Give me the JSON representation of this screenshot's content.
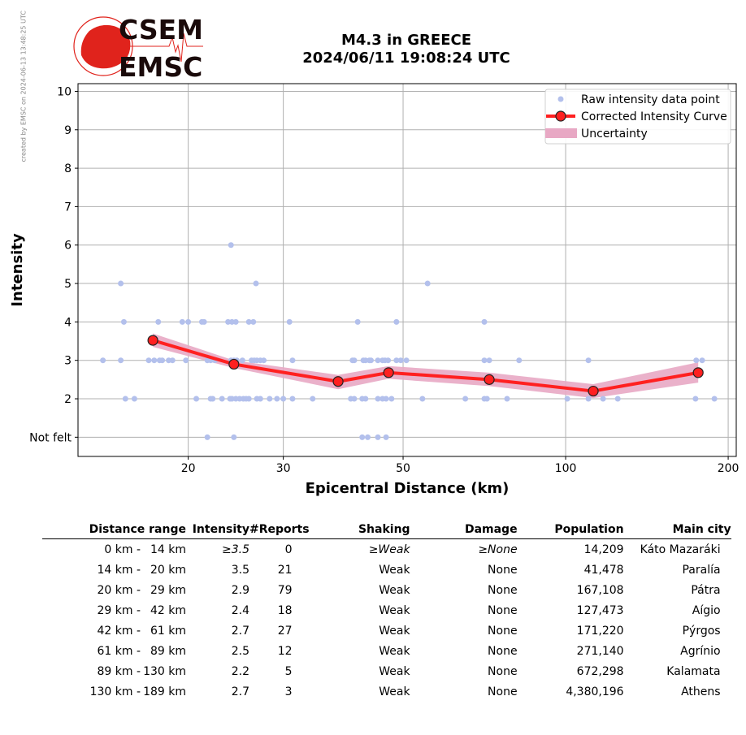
{
  "watermark": "created by EMSC on 2024-06-13 13:48:25 UTC",
  "logo": {
    "top": "CSEM",
    "bottom": "EMSC"
  },
  "title": {
    "line1": "M4.3 in GREECE",
    "line2": "2024/06/11 19:08:24 UTC"
  },
  "chart_data": {
    "type": "scatter",
    "xlabel": "Epicentral Distance (km)",
    "ylabel": "Intensity",
    "xscale": "log",
    "xlim": [
      12.5,
      207
    ],
    "ylim": [
      0.5,
      10.2
    ],
    "xticks": [
      20,
      30,
      50,
      100,
      200
    ],
    "yticks": [
      1,
      2,
      3,
      4,
      5,
      6,
      7,
      8,
      9,
      10
    ],
    "ytick_labels": [
      "Not felt",
      "2",
      "3",
      "4",
      "5",
      "6",
      "7",
      "8",
      "9",
      "10"
    ],
    "grid": true,
    "legend": {
      "placement": "top-right",
      "entries": [
        "Raw intensity data point",
        "Corrected Intensity Curve",
        "Uncertainty"
      ]
    },
    "colors": {
      "raw": "#b3c0ec",
      "curve": "#ff2020",
      "uncertainty": "#e8a8c4"
    },
    "raw_points": [
      {
        "y": 6,
        "x": [
          24.0
        ]
      },
      {
        "y": 5,
        "x": [
          15.0,
          26.7,
          55.5
        ]
      },
      {
        "y": 4,
        "x": [
          15.2,
          17.6,
          19.5,
          20.0,
          21.2,
          21.4,
          23.7,
          24.1,
          24.5,
          25.9,
          26.4,
          30.8,
          41.2,
          48.6,
          70.7
        ]
      },
      {
        "y": 3,
        "x": [
          13.9,
          15.0,
          16.9,
          17.3,
          17.7,
          17.9,
          18.4,
          18.7,
          19.8,
          21.7,
          22.0,
          22.4,
          24.0,
          24.3,
          24.6,
          25.2,
          26.2,
          26.5,
          26.8,
          27.2,
          27.6,
          31.2,
          40.3,
          40.6,
          42.2,
          42.6,
          43.3,
          43.6,
          44.9,
          45.8,
          46.3,
          46.9,
          48.6,
          49.5,
          50.7,
          70.7,
          72.2,
          82.0,
          110.2,
          174.5,
          179.0
        ]
      },
      {
        "y": 2,
        "x": [
          15.3,
          15.9,
          20.7,
          22.0,
          22.2,
          23.1,
          23.9,
          24.1,
          24.5,
          24.9,
          25.3,
          25.6,
          25.9,
          26.8,
          27.2,
          28.3,
          29.2,
          30.0,
          31.2,
          34.0,
          40.0,
          40.6,
          42.0,
          42.6,
          44.9,
          45.8,
          46.5,
          47.6,
          54.3,
          65.2,
          70.7,
          71.5,
          77.9,
          100.7,
          110.2,
          117.3,
          124.9,
          174.0,
          188.6
        ]
      },
      {
        "y": 1,
        "x": [
          21.7,
          24.3,
          42.0,
          43.0,
          44.9,
          46.5
        ]
      }
    ],
    "curve": {
      "x": [
        17.2,
        24.3,
        37.9,
        47.0,
        72.2,
        112.5,
        176.0
      ],
      "y": [
        3.52,
        2.9,
        2.45,
        2.68,
        2.5,
        2.2,
        2.68
      ],
      "upper": [
        3.7,
        3.0,
        2.62,
        2.85,
        2.68,
        2.38,
        2.95
      ],
      "lower": [
        3.35,
        2.8,
        2.25,
        2.52,
        2.33,
        2.02,
        2.42
      ]
    }
  },
  "table": {
    "headers": [
      "Distance range",
      "Intensity",
      "#Reports",
      "Shaking",
      "Damage",
      "Population",
      "Main city"
    ],
    "rows": [
      {
        "from": "0 km -",
        "to": "14 km",
        "intensity": "≥3.5",
        "reports": "0",
        "shaking": "≥Weak",
        "damage": "≥None",
        "population": "14,209",
        "city": "Káto Mazaráki"
      },
      {
        "from": "14 km -",
        "to": "20 km",
        "intensity": "3.5",
        "reports": "21",
        "shaking": "Weak",
        "damage": "None",
        "population": "41,478",
        "city": "Paralía"
      },
      {
        "from": "20 km -",
        "to": "29 km",
        "intensity": "2.9",
        "reports": "79",
        "shaking": "Weak",
        "damage": "None",
        "population": "167,108",
        "city": "Pátra"
      },
      {
        "from": "29 km -",
        "to": "42 km",
        "intensity": "2.4",
        "reports": "18",
        "shaking": "Weak",
        "damage": "None",
        "population": "127,473",
        "city": "Aígio"
      },
      {
        "from": "42 km -",
        "to": "61 km",
        "intensity": "2.7",
        "reports": "27",
        "shaking": "Weak",
        "damage": "None",
        "population": "171,220",
        "city": "Pýrgos"
      },
      {
        "from": "61 km -",
        "to": "89 km",
        "intensity": "2.5",
        "reports": "12",
        "shaking": "Weak",
        "damage": "None",
        "population": "271,140",
        "city": "Agrínio"
      },
      {
        "from": "89 km -",
        "to": "130 km",
        "intensity": "2.2",
        "reports": "5",
        "shaking": "Weak",
        "damage": "None",
        "population": "672,298",
        "city": "Kalamata"
      },
      {
        "from": "130 km -",
        "to": "189 km",
        "intensity": "2.7",
        "reports": "3",
        "shaking": "Weak",
        "damage": "None",
        "population": "4,380,196",
        "city": "Athens"
      }
    ]
  }
}
